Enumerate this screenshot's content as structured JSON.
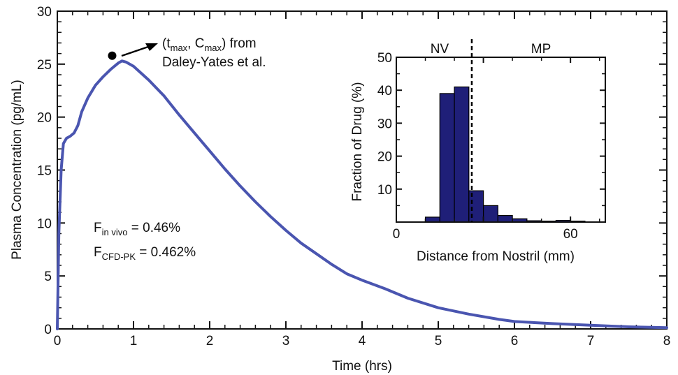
{
  "chart_data": [
    {
      "type": "line",
      "xlabel": "Time (hrs)",
      "ylabel": "Plasma Concentration (pg/mL)",
      "xlim": [
        0,
        8
      ],
      "ylim": [
        0,
        30
      ],
      "xticks": [
        "0",
        "1",
        "2",
        "3",
        "4",
        "5",
        "6",
        "7",
        "8"
      ],
      "yticks": [
        "0",
        "5",
        "10",
        "15",
        "20",
        "25",
        "30"
      ],
      "grid": false,
      "series": [
        {
          "color": "#4a55b0",
          "x": [
            0.0,
            0.02,
            0.05,
            0.08,
            0.12,
            0.17,
            0.22,
            0.27,
            0.32,
            0.4,
            0.5,
            0.6,
            0.7,
            0.8,
            0.85,
            0.9,
            1.0,
            1.2,
            1.4,
            1.6,
            1.8,
            2.0,
            2.2,
            2.4,
            2.6,
            2.8,
            3.0,
            3.2,
            3.4,
            3.6,
            3.8,
            4.0,
            4.3,
            4.6,
            5.0,
            5.4,
            5.8,
            6.0,
            6.5,
            7.0,
            7.5,
            8.0
          ],
          "y": [
            0.0,
            9.0,
            15.0,
            17.5,
            18.0,
            18.2,
            18.5,
            19.2,
            20.5,
            21.8,
            23.0,
            23.8,
            24.5,
            25.1,
            25.3,
            25.2,
            24.8,
            23.5,
            22.0,
            20.2,
            18.5,
            16.8,
            15.1,
            13.5,
            12.0,
            10.6,
            9.3,
            8.1,
            7.1,
            6.1,
            5.2,
            4.6,
            3.8,
            2.9,
            2.0,
            1.4,
            0.9,
            0.7,
            0.5,
            0.35,
            0.2,
            0.12
          ]
        }
      ],
      "points": [
        {
          "x": 0.72,
          "y": 25.8
        }
      ],
      "annotations": [
        {
          "text": "(t<sub>max</sub>, C<sub>max</sub>) from",
          "parts": [
            "(t",
            "max",
            ", C",
            "max",
            ") from"
          ]
        },
        {
          "text": "Daley-Yates et al."
        }
      ],
      "labels": [
        {
          "main": "F",
          "sub": "in vivo",
          "rest": " = 0.46%"
        },
        {
          "main": "F",
          "sub": "CFD-PK",
          "rest": " = 0.462%"
        }
      ]
    },
    {
      "type": "bar",
      "xlabel": "Distance from Nostril (mm)",
      "ylabel": "Fraction of Drug (%)",
      "xlim": [
        0,
        72
      ],
      "ylim": [
        0,
        50
      ],
      "xticks": [
        "0",
        "60"
      ],
      "yticks": [
        "10",
        "20",
        "30",
        "40",
        "50"
      ],
      "bin_edges": [
        10,
        15,
        20,
        25,
        30,
        35,
        40,
        45,
        50,
        55,
        60,
        65
      ],
      "values": [
        1.5,
        39.0,
        41.0,
        9.5,
        5.0,
        2.0,
        1.0,
        0.4,
        0.3,
        0.5,
        0.3
      ],
      "bar_color": "#1f1f78",
      "divider_x": 26,
      "region_labels": [
        "NV",
        "MP"
      ]
    }
  ]
}
